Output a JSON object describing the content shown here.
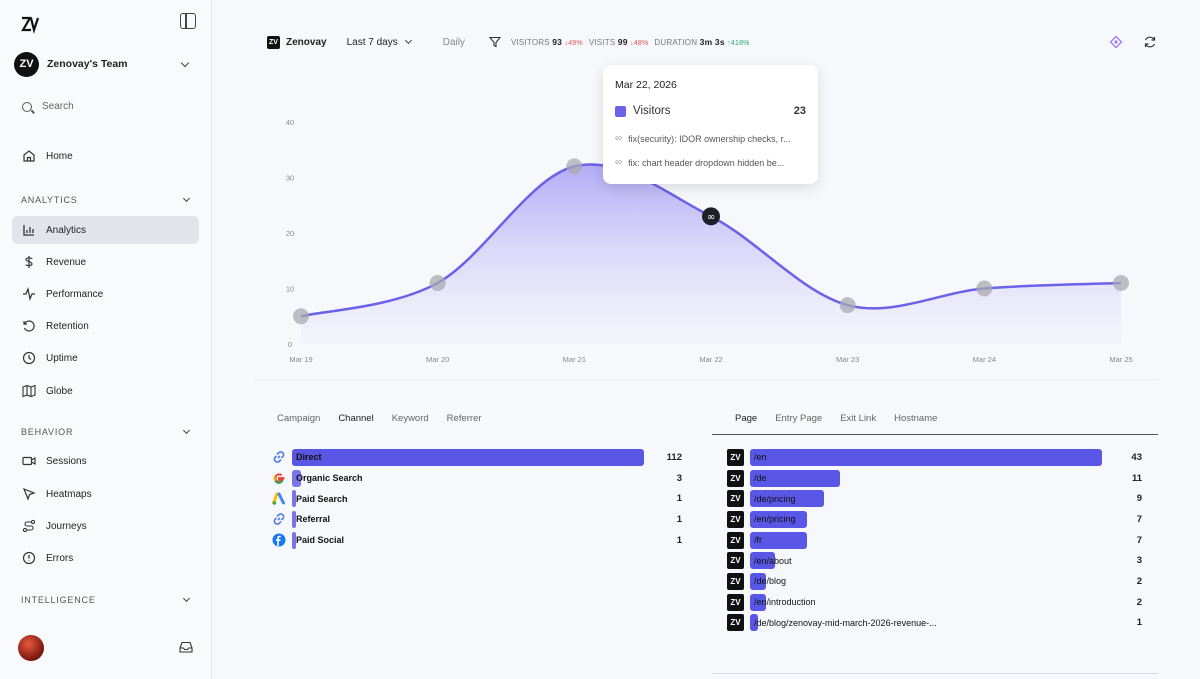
{
  "sidebar": {
    "team_name": "Zenovay's Team",
    "team_initials": "ZV",
    "search_label": "Search",
    "home": "Home",
    "sections": {
      "analytics": "ANALYTICS",
      "behavior": "BEHAVIOR",
      "intelligence": "INTELLIGENCE"
    },
    "analytics_items": [
      "Analytics",
      "Revenue",
      "Performance",
      "Retention",
      "Uptime",
      "Globe"
    ],
    "behavior_items": [
      "Sessions",
      "Heatmaps",
      "Journeys",
      "Errors"
    ]
  },
  "toolbar": {
    "brand": "Zenovay",
    "range": "Last 7 days",
    "interval": "Daily",
    "visitors_label": "VISITORS",
    "visitors_value": "93",
    "visitors_change": "↓49%",
    "visits_label": "VISITS",
    "visits_value": "99",
    "visits_change": "↓48%",
    "duration_label": "DURATION",
    "duration_value": "3m 3s",
    "duration_change": "↑418%"
  },
  "chart_data": {
    "type": "area",
    "categories": [
      "Mar 19",
      "Mar 20",
      "Mar 21",
      "Mar 22",
      "Mar 23",
      "Mar 24",
      "Mar 25"
    ],
    "series": [
      {
        "name": "Visitors",
        "values": [
          5,
          11,
          32,
          23,
          7,
          10,
          11
        ]
      }
    ],
    "y_ticks": [
      0,
      10,
      20,
      30,
      40
    ],
    "ylim": [
      0,
      40
    ],
    "color": "#6a62e8"
  },
  "tooltip": {
    "date": "Mar 22, 2026",
    "series": "Visitors",
    "value": "23",
    "commits": [
      "fix(security): IDOR ownership checks, r...",
      "fix: chart header dropdown hidden be..."
    ]
  },
  "sources_panel": {
    "tabs": [
      "Campaign",
      "Channel",
      "Keyword",
      "Referrer"
    ],
    "active_tab": "Channel",
    "rows": [
      {
        "label": "Direct",
        "value": 112,
        "icon": "link-icon"
      },
      {
        "label": "Organic Search",
        "value": 3,
        "icon": "google-icon"
      },
      {
        "label": "Paid Search",
        "value": 1,
        "icon": "google-ads-icon"
      },
      {
        "label": "Referral",
        "value": 1,
        "icon": "link-icon"
      },
      {
        "label": "Paid Social",
        "value": 1,
        "icon": "facebook-icon"
      }
    ]
  },
  "pages_panel": {
    "tabs": [
      "Page",
      "Entry Page",
      "Exit Link",
      "Hostname"
    ],
    "active_tab": "Page",
    "rows": [
      {
        "label": "/en",
        "value": 43
      },
      {
        "label": "/de",
        "value": 11
      },
      {
        "label": "/de/pricing",
        "value": 9
      },
      {
        "label": "/en/pricing",
        "value": 7
      },
      {
        "label": "/fr",
        "value": 7
      },
      {
        "label": "/en/about",
        "value": 3
      },
      {
        "label": "/de/blog",
        "value": 2
      },
      {
        "label": "/en/introduction",
        "value": 2
      },
      {
        "label": "/de/blog/zenovay-mid-march-2026-revenue-...",
        "value": 1
      }
    ]
  }
}
